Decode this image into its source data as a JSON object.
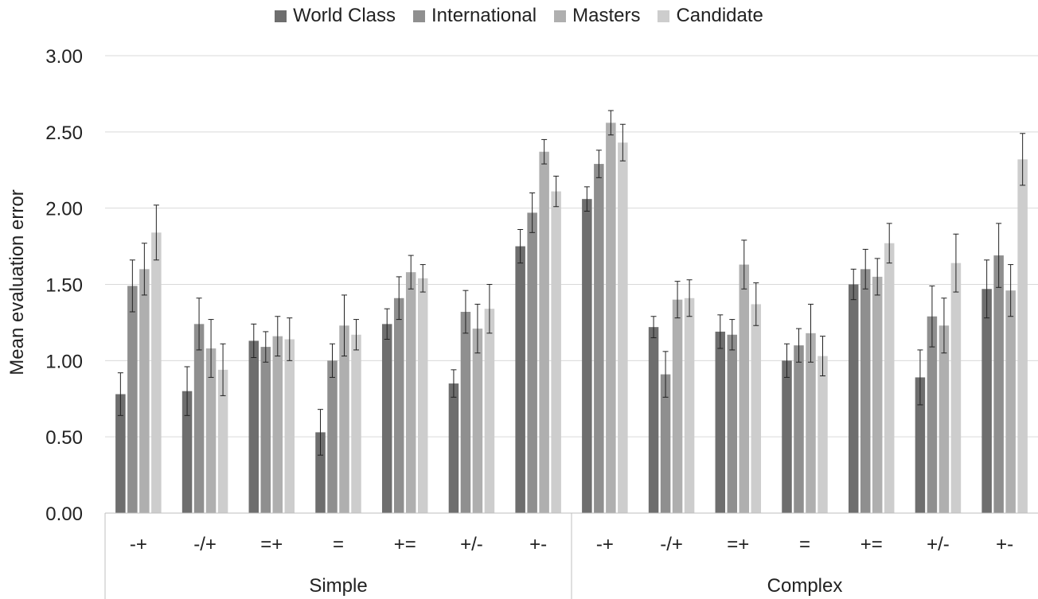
{
  "chart_data": {
    "type": "bar",
    "ylabel": "Mean evaluation error",
    "ylim": [
      0,
      3
    ],
    "yticks": [
      "0.00",
      "0.50",
      "1.00",
      "1.50",
      "2.00",
      "2.50",
      "3.00"
    ],
    "grid": true,
    "legend_position": "top",
    "groups": [
      {
        "label": "Simple",
        "categories": [
          "-+",
          "-/+",
          "=+",
          "=",
          "+=",
          "+/-",
          "+-"
        ]
      },
      {
        "label": "Complex",
        "categories": [
          "-+",
          "-/+",
          "=+",
          "=",
          "+=",
          "+/-",
          "+-"
        ]
      }
    ],
    "series": [
      {
        "name": "World Class",
        "color": "#6e6e6e",
        "values": [
          0.78,
          0.8,
          1.13,
          0.53,
          1.24,
          0.85,
          1.75,
          2.06,
          1.22,
          1.19,
          1.0,
          1.5,
          0.89,
          1.47
        ],
        "errors": [
          0.14,
          0.16,
          0.11,
          0.15,
          0.1,
          0.09,
          0.11,
          0.08,
          0.07,
          0.11,
          0.11,
          0.1,
          0.18,
          0.19
        ]
      },
      {
        "name": "International",
        "color": "#8f8f8f",
        "values": [
          1.49,
          1.24,
          1.09,
          1.0,
          1.41,
          1.32,
          1.97,
          2.29,
          0.91,
          1.17,
          1.1,
          1.6,
          1.29,
          1.69
        ],
        "errors": [
          0.17,
          0.17,
          0.1,
          0.11,
          0.14,
          0.14,
          0.13,
          0.09,
          0.15,
          0.1,
          0.11,
          0.13,
          0.2,
          0.21
        ]
      },
      {
        "name": "Masters",
        "color": "#afafaf",
        "values": [
          1.6,
          1.08,
          1.16,
          1.23,
          1.58,
          1.21,
          2.37,
          2.56,
          1.4,
          1.63,
          1.18,
          1.55,
          1.23,
          1.46
        ],
        "errors": [
          0.17,
          0.19,
          0.13,
          0.2,
          0.11,
          0.16,
          0.08,
          0.08,
          0.12,
          0.16,
          0.19,
          0.12,
          0.18,
          0.17
        ]
      },
      {
        "name": "Candidate",
        "color": "#cdcdcd",
        "values": [
          1.84,
          0.94,
          1.14,
          1.17,
          1.54,
          1.34,
          2.11,
          2.43,
          1.41,
          1.37,
          1.03,
          1.77,
          1.64,
          2.32
        ],
        "errors": [
          0.18,
          0.17,
          0.14,
          0.1,
          0.09,
          0.16,
          0.1,
          0.12,
          0.12,
          0.14,
          0.13,
          0.13,
          0.19,
          0.17
        ]
      }
    ]
  }
}
